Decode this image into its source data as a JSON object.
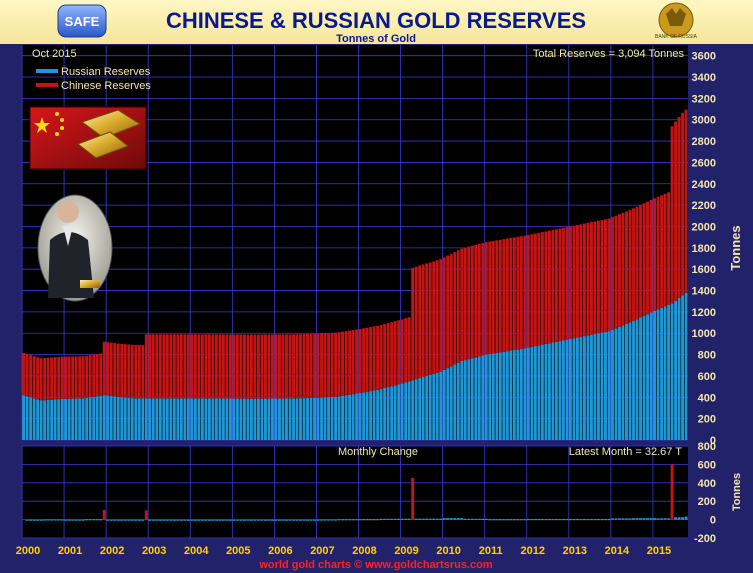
{
  "header": {
    "title": "CHINESE & RUSSIAN GOLD RESERVES",
    "subtitle": "Tonnes of Gold",
    "logo_left_text": "SAFE",
    "logo_right_text": "BANK OF RUSSIA"
  },
  "footer": {
    "credit": "world gold charts © www.goldchartsrus.com"
  },
  "colors": {
    "background": "#22226a",
    "plot_bg": "#000000",
    "grid": "#3a3ad8",
    "russia": "#1f97d6",
    "china": "#c41414",
    "title": "#0a1a8c",
    "label": "#f2e6b0",
    "year_label": "#ffd200"
  },
  "chart_data": [
    {
      "type": "bar",
      "stacked": true,
      "title": "CHINESE & RUSSIAN GOLD RESERVES",
      "subtitle": "Tonnes of Gold",
      "date_label": "Oct 2015",
      "total_label": "Total Reserves = 3,094 Tonnes",
      "ylabel": "Tonnes",
      "ylim": [
        0,
        3700
      ],
      "yticks": [
        0,
        200,
        400,
        600,
        800,
        1000,
        1200,
        1400,
        1600,
        1800,
        2000,
        2200,
        2400,
        2600,
        2800,
        3000,
        3200,
        3400,
        3600
      ],
      "legend_position": "top-left",
      "grid": true,
      "x_start": "2000-01",
      "x_end": "2015-10",
      "x_tick_labels": [
        "2000",
        "2001",
        "2002",
        "2003",
        "2004",
        "2005",
        "2006",
        "2007",
        "2008",
        "2009",
        "2010",
        "2011",
        "2012",
        "2013",
        "2014",
        "2015"
      ],
      "series": [
        {
          "name": "Russian Reserves",
          "color": "#1f97d6",
          "points": [
            [
              "2000-01",
              420
            ],
            [
              "2000-06",
              370
            ],
            [
              "2000-12",
              385
            ],
            [
              "2001-06",
              390
            ],
            [
              "2001-12",
              420
            ],
            [
              "2002-05",
              400
            ],
            [
              "2002-09",
              390
            ],
            [
              "2003-06",
              390
            ],
            [
              "2004-06",
              390
            ],
            [
              "2005-06",
              387
            ],
            [
              "2006-06",
              390
            ],
            [
              "2007-01",
              395
            ],
            [
              "2007-06",
              405
            ],
            [
              "2008-01",
              440
            ],
            [
              "2008-06",
              470
            ],
            [
              "2009-01",
              530
            ],
            [
              "2009-04",
              560
            ],
            [
              "2009-12",
              640
            ],
            [
              "2010-06",
              740
            ],
            [
              "2011-01",
              800
            ],
            [
              "2011-12",
              860
            ],
            [
              "2012-12",
              940
            ],
            [
              "2013-12",
              1020
            ],
            [
              "2014-06",
              1100
            ],
            [
              "2015-01",
              1210
            ],
            [
              "2015-06",
              1280
            ],
            [
              "2015-10",
              1380
            ]
          ]
        },
        {
          "name": "Chinese Reserves",
          "color": "#c41414",
          "points": [
            [
              "2000-01",
              395
            ],
            [
              "2001-11",
              395
            ],
            [
              "2001-12",
              500
            ],
            [
              "2002-11",
              500
            ],
            [
              "2002-12",
              600
            ],
            [
              "2009-03",
              600
            ],
            [
              "2009-04",
              1054
            ],
            [
              "2015-05",
              1054
            ],
            [
              "2015-06",
              1658
            ],
            [
              "2015-07",
              1677
            ],
            [
              "2015-08",
              1696
            ],
            [
              "2015-09",
              1710
            ],
            [
              "2015-10",
              1714
            ]
          ]
        }
      ]
    },
    {
      "type": "bar",
      "title": "Monthly Change",
      "latest_label": "Latest Month = 32.67 T",
      "ylabel": "Tonnes",
      "ylim": [
        -200,
        800
      ],
      "yticks": [
        -200,
        0,
        200,
        400,
        600,
        800
      ],
      "grid": true,
      "spikes": [
        {
          "date": "2001-12",
          "value": 105,
          "series": "Chinese Reserves"
        },
        {
          "date": "2002-12",
          "value": 100,
          "series": "Chinese Reserves"
        },
        {
          "date": "2009-04",
          "value": 454,
          "series": "Chinese Reserves"
        },
        {
          "date": "2015-06",
          "value": 604,
          "series": "Chinese Reserves"
        },
        {
          "date": "2015-10",
          "value": 33,
          "series": "Russian Reserves"
        }
      ]
    }
  ]
}
